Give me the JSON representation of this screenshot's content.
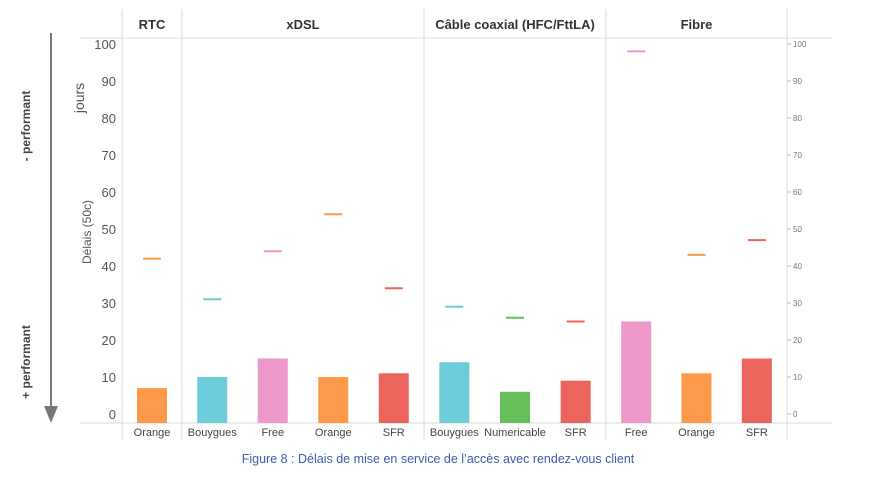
{
  "chart_data": {
    "type": "bar",
    "title": "",
    "ylabel": "Délais (50c)",
    "yunit": "jours",
    "ylim": [
      0,
      100
    ],
    "yticks": [
      0,
      10,
      20,
      30,
      40,
      50,
      60,
      70,
      80,
      90,
      100
    ],
    "grid": false,
    "facet_labels": [
      "RTC",
      "xDSL",
      "Câble coaxial (HFC/FttLA)",
      "Fibre"
    ],
    "categories": [
      "Orange",
      "Bouygues",
      "Free",
      "Orange",
      "SFR",
      "Bouygues",
      "Numericable",
      "SFR",
      "Free",
      "Orange",
      "SFR"
    ],
    "groups": [
      {
        "name": "RTC",
        "bars": [
          {
            "operator": "Orange",
            "value": 7,
            "marker": 42,
            "color": "#fd9a49"
          }
        ]
      },
      {
        "name": "xDSL",
        "bars": [
          {
            "operator": "Bouygues",
            "value": 10,
            "marker": 31,
            "color": "#6dccda"
          },
          {
            "operator": "Free",
            "value": 15,
            "marker": 44,
            "color": "#ed97ca"
          },
          {
            "operator": "Orange",
            "value": 10,
            "marker": 54,
            "color": "#fd9a49"
          },
          {
            "operator": "SFR",
            "value": 11,
            "marker": 34,
            "color": "#ec645e"
          }
        ]
      },
      {
        "name": "Câble coaxial (HFC/FttLA)",
        "bars": [
          {
            "operator": "Bouygues",
            "value": 14,
            "marker": 29,
            "color": "#6dccda"
          },
          {
            "operator": "Numericable",
            "value": 6,
            "marker": 26,
            "color": "#67bf5c"
          },
          {
            "operator": "SFR",
            "value": 9,
            "marker": 25,
            "color": "#ec645e"
          }
        ]
      },
      {
        "name": "Fibre",
        "bars": [
          {
            "operator": "Free",
            "value": 25,
            "marker": 98,
            "color": "#ed97ca"
          },
          {
            "operator": "Orange",
            "value": 11,
            "marker": 43,
            "color": "#fd9a49"
          },
          {
            "operator": "SFR",
            "value": 15,
            "marker": 47,
            "color": "#ec645e"
          }
        ]
      }
    ],
    "arrow_labels": [
      "- performant",
      "+ performant"
    ],
    "caption": "Figure 8 : Délais de  mise en service de l’accès avec rendez-vous client"
  }
}
